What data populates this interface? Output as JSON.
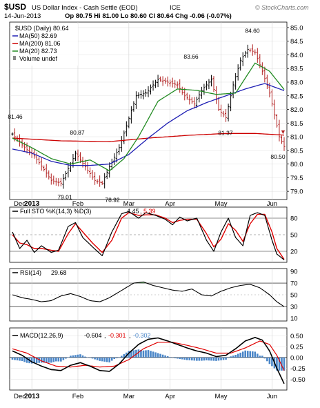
{
  "header": {
    "symbol": "$USD",
    "name": "US Dollar Index - Cash Settle (EOD)",
    "exchange": "ICE",
    "date": "14-Jun-2013",
    "quote": "Op 80.75  Hi 81.00  Lo 80.60  Cl 80.64  Chg -0.06 (-0.07%)",
    "watermark": "© StockCharts.com",
    "down_arrow": "▼"
  },
  "legend": {
    "price": "$USD (Daily) 80.64",
    "ma50": "MA(50) 82.69",
    "ma200": "MA(200) 81.06",
    "ma20": "MA(20) 82.73",
    "volume": "Volume undef"
  },
  "colors": {
    "up": "#000000",
    "down": "#b22222",
    "ma50": "#1f1fb4",
    "ma200": "#cc0000",
    "ma20": "#228b22",
    "k_line": "#000000",
    "d_line": "#e00000",
    "rsi_line": "#000000",
    "macd_line": "#000000",
    "signal_line": "#e00000",
    "hist": "#4a86c8"
  },
  "x_labels": [
    "Dec",
    "2013",
    "Feb",
    "Mar",
    "Apr",
    "May",
    "Jun"
  ],
  "chart_data": [
    {
      "type": "ohlc",
      "title": "US Dollar Index - Cash Settle (EOD)",
      "yticks": [
        79.0,
        79.5,
        80.0,
        80.5,
        81.0,
        81.5,
        82.0,
        82.5,
        83.0,
        83.5,
        84.0,
        84.5,
        85.0
      ],
      "ylim": [
        78.7,
        85.2
      ],
      "annotations": [
        {
          "label": "81.46",
          "value": 81.46
        },
        {
          "label": "80.87",
          "value": 80.87
        },
        {
          "label": "79.01",
          "value": 79.01
        },
        {
          "label": "78.92",
          "value": 78.92
        },
        {
          "label": "83.66",
          "value": 83.66
        },
        {
          "label": "81.37",
          "value": 81.37
        },
        {
          "label": "84.60",
          "value": 84.6
        },
        {
          "label": "80.50",
          "value": 80.5
        }
      ],
      "close_anchors": [
        [
          0,
          81.1
        ],
        [
          5,
          80.6
        ],
        [
          9,
          80.3
        ],
        [
          13,
          79.8
        ],
        [
          16,
          79.4
        ],
        [
          20,
          79.3
        ],
        [
          24,
          80.0
        ],
        [
          26,
          80.4
        ],
        [
          30,
          79.9
        ],
        [
          34,
          79.4
        ],
        [
          37,
          79.3
        ],
        [
          40,
          79.9
        ],
        [
          44,
          80.6
        ],
        [
          47,
          81.4
        ],
        [
          51,
          82.5
        ],
        [
          55,
          82.6
        ],
        [
          60,
          83.1
        ],
        [
          64,
          83.0
        ],
        [
          68,
          82.9
        ],
        [
          71,
          82.5
        ],
        [
          75,
          82.2
        ],
        [
          78,
          82.7
        ],
        [
          82,
          83.1
        ],
        [
          85,
          82.0
        ],
        [
          88,
          81.7
        ],
        [
          91,
          82.9
        ],
        [
          94,
          83.8
        ],
        [
          97,
          84.2
        ],
        [
          100,
          84.1
        ],
        [
          103,
          83.4
        ],
        [
          106,
          82.6
        ],
        [
          108,
          81.8
        ],
        [
          110,
          81.0
        ],
        [
          112,
          80.64
        ]
      ],
      "ma50_anchors": [
        [
          0,
          80.55
        ],
        [
          8,
          80.4
        ],
        [
          16,
          80.1
        ],
        [
          24,
          79.95
        ],
        [
          32,
          79.95
        ],
        [
          40,
          80.0
        ],
        [
          48,
          80.35
        ],
        [
          56,
          80.95
        ],
        [
          64,
          81.5
        ],
        [
          72,
          81.95
        ],
        [
          80,
          82.25
        ],
        [
          88,
          82.5
        ],
        [
          96,
          82.75
        ],
        [
          104,
          82.95
        ],
        [
          112,
          82.69
        ]
      ],
      "ma200_anchors": [
        [
          0,
          80.95
        ],
        [
          20,
          80.85
        ],
        [
          40,
          80.82
        ],
        [
          56,
          80.95
        ],
        [
          72,
          81.05
        ],
        [
          88,
          81.12
        ],
        [
          100,
          81.12
        ],
        [
          112,
          81.06
        ]
      ],
      "ma20_anchors": [
        [
          0,
          80.95
        ],
        [
          8,
          80.6
        ],
        [
          16,
          80.2
        ],
        [
          24,
          80.0
        ],
        [
          32,
          80.15
        ],
        [
          40,
          79.75
        ],
        [
          46,
          80.2
        ],
        [
          52,
          81.0
        ],
        [
          60,
          82.3
        ],
        [
          68,
          82.75
        ],
        [
          76,
          82.7
        ],
        [
          84,
          82.55
        ],
        [
          92,
          82.6
        ],
        [
          100,
          83.7
        ],
        [
          106,
          83.4
        ],
        [
          112,
          82.73
        ]
      ]
    },
    {
      "type": "line",
      "title": "Full STO %K(14,3) %D(3)",
      "k_value": "4.45",
      "d_value": "5.39",
      "yticks": [
        20,
        50,
        80
      ],
      "ylim": [
        0,
        100
      ],
      "k_anchors": [
        [
          0,
          55
        ],
        [
          3,
          25
        ],
        [
          6,
          40
        ],
        [
          9,
          18
        ],
        [
          12,
          30
        ],
        [
          16,
          18
        ],
        [
          19,
          22
        ],
        [
          23,
          65
        ],
        [
          26,
          72
        ],
        [
          29,
          45
        ],
        [
          33,
          28
        ],
        [
          37,
          12
        ],
        [
          41,
          55
        ],
        [
          45,
          88
        ],
        [
          48,
          92
        ],
        [
          52,
          80
        ],
        [
          55,
          90
        ],
        [
          59,
          85
        ],
        [
          63,
          78
        ],
        [
          66,
          68
        ],
        [
          69,
          82
        ],
        [
          72,
          75
        ],
        [
          76,
          80
        ],
        [
          80,
          40
        ],
        [
          83,
          20
        ],
        [
          86,
          55
        ],
        [
          89,
          80
        ],
        [
          92,
          45
        ],
        [
          95,
          30
        ],
        [
          98,
          85
        ],
        [
          101,
          90
        ],
        [
          104,
          85
        ],
        [
          107,
          40
        ],
        [
          109,
          15
        ],
        [
          112,
          4.45
        ]
      ],
      "d_anchors": [
        [
          0,
          50
        ],
        [
          3,
          35
        ],
        [
          6,
          32
        ],
        [
          9,
          25
        ],
        [
          12,
          25
        ],
        [
          16,
          22
        ],
        [
          19,
          20
        ],
        [
          23,
          52
        ],
        [
          26,
          70
        ],
        [
          29,
          55
        ],
        [
          33,
          35
        ],
        [
          37,
          18
        ],
        [
          41,
          40
        ],
        [
          45,
          80
        ],
        [
          48,
          90
        ],
        [
          52,
          85
        ],
        [
          55,
          86
        ],
        [
          59,
          86
        ],
        [
          63,
          80
        ],
        [
          66,
          72
        ],
        [
          69,
          76
        ],
        [
          72,
          78
        ],
        [
          76,
          78
        ],
        [
          80,
          52
        ],
        [
          83,
          28
        ],
        [
          86,
          42
        ],
        [
          89,
          70
        ],
        [
          92,
          58
        ],
        [
          95,
          38
        ],
        [
          98,
          70
        ],
        [
          101,
          87
        ],
        [
          104,
          87
        ],
        [
          107,
          55
        ],
        [
          109,
          25
        ],
        [
          112,
          5.39
        ]
      ]
    },
    {
      "type": "line",
      "title": "RSI(14)",
      "value": "29.68",
      "yticks": [
        10,
        30,
        50,
        70,
        90
      ],
      "ylim": [
        5,
        95
      ],
      "rsi_anchors": [
        [
          0,
          50
        ],
        [
          4,
          45
        ],
        [
          8,
          42
        ],
        [
          12,
          38
        ],
        [
          16,
          40
        ],
        [
          20,
          48
        ],
        [
          24,
          52
        ],
        [
          28,
          47
        ],
        [
          32,
          40
        ],
        [
          36,
          38
        ],
        [
          40,
          45
        ],
        [
          44,
          55
        ],
        [
          48,
          65
        ],
        [
          50,
          70
        ],
        [
          54,
          72
        ],
        [
          58,
          66
        ],
        [
          62,
          62
        ],
        [
          66,
          58
        ],
        [
          70,
          56
        ],
        [
          74,
          60
        ],
        [
          78,
          50
        ],
        [
          82,
          48
        ],
        [
          86,
          56
        ],
        [
          90,
          62
        ],
        [
          94,
          66
        ],
        [
          98,
          68
        ],
        [
          102,
          62
        ],
        [
          106,
          50
        ],
        [
          109,
          38
        ],
        [
          112,
          29.68
        ]
      ]
    },
    {
      "type": "line",
      "title": "MACD(12,26,9)",
      "macd_value": "-0.604",
      "signal_value": "-0.301",
      "hist_value": "-0.302",
      "yticks": [
        -0.5,
        -0.25,
        0.0,
        0.25,
        0.5
      ],
      "ytick_labels": [
        "-0.50",
        "-0.25",
        "0.00",
        "0.25",
        "0.50"
      ],
      "ylim": [
        -0.75,
        0.68
      ],
      "macd_anchors": [
        [
          0,
          0.15
        ],
        [
          4,
          0.05
        ],
        [
          8,
          -0.1
        ],
        [
          12,
          -0.2
        ],
        [
          16,
          -0.28
        ],
        [
          20,
          -0.3
        ],
        [
          24,
          -0.18
        ],
        [
          28,
          -0.12
        ],
        [
          32,
          -0.2
        ],
        [
          36,
          -0.3
        ],
        [
          40,
          -0.32
        ],
        [
          44,
          -0.15
        ],
        [
          48,
          0.1
        ],
        [
          52,
          0.3
        ],
        [
          56,
          0.42
        ],
        [
          60,
          0.45
        ],
        [
          64,
          0.38
        ],
        [
          68,
          0.3
        ],
        [
          72,
          0.22
        ],
        [
          76,
          0.15
        ],
        [
          80,
          0.1
        ],
        [
          84,
          0.02
        ],
        [
          88,
          0.05
        ],
        [
          92,
          0.2
        ],
        [
          96,
          0.38
        ],
        [
          100,
          0.46
        ],
        [
          103,
          0.4
        ],
        [
          106,
          0.15
        ],
        [
          109,
          -0.25
        ],
        [
          112,
          -0.604
        ]
      ],
      "signal_anchors": [
        [
          0,
          0.2
        ],
        [
          6,
          0.1
        ],
        [
          12,
          -0.08
        ],
        [
          18,
          -0.2
        ],
        [
          24,
          -0.22
        ],
        [
          30,
          -0.18
        ],
        [
          36,
          -0.22
        ],
        [
          42,
          -0.2
        ],
        [
          48,
          -0.05
        ],
        [
          54,
          0.2
        ],
        [
          60,
          0.35
        ],
        [
          66,
          0.35
        ],
        [
          72,
          0.28
        ],
        [
          78,
          0.2
        ],
        [
          84,
          0.1
        ],
        [
          90,
          0.1
        ],
        [
          96,
          0.22
        ],
        [
          102,
          0.38
        ],
        [
          106,
          0.3
        ],
        [
          109,
          0.05
        ],
        [
          112,
          -0.301
        ]
      ]
    }
  ]
}
